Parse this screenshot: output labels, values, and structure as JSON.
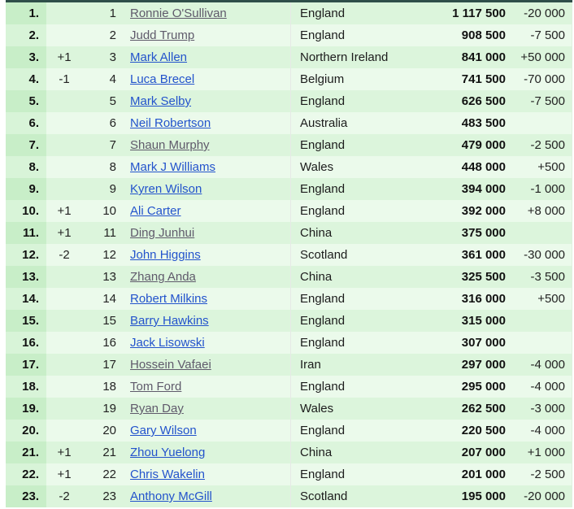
{
  "table": {
    "colors": {
      "top_border": "#2f4f4a",
      "row_odd": "#dcf5dc",
      "row_even": "#ebfaeb",
      "rank_cell_odd": "#c8eec8",
      "rank_cell_even": "#d8f4d8",
      "link": "#2353cc",
      "visited_link": "#5f5a6b"
    },
    "rows": [
      {
        "rank": "1.",
        "move": "",
        "pos": "1",
        "name": "Ronnie O'Sullivan",
        "visited": true,
        "country": "England",
        "prize": "1 117 500",
        "change": "-20 000"
      },
      {
        "rank": "2.",
        "move": "",
        "pos": "2",
        "name": "Judd Trump",
        "visited": true,
        "country": "England",
        "prize": "908 500",
        "change": "-7 500"
      },
      {
        "rank": "3.",
        "move": "+1",
        "pos": "3",
        "name": "Mark Allen",
        "visited": false,
        "country": "Northern Ireland",
        "prize": "841 000",
        "change": "+50 000"
      },
      {
        "rank": "4.",
        "move": "-1",
        "pos": "4",
        "name": "Luca Brecel",
        "visited": false,
        "country": "Belgium",
        "prize": "741 500",
        "change": "-70 000"
      },
      {
        "rank": "5.",
        "move": "",
        "pos": "5",
        "name": "Mark Selby",
        "visited": false,
        "country": "England",
        "prize": "626 500",
        "change": "-7 500"
      },
      {
        "rank": "6.",
        "move": "",
        "pos": "6",
        "name": "Neil Robertson",
        "visited": false,
        "country": "Australia",
        "prize": "483 500",
        "change": ""
      },
      {
        "rank": "7.",
        "move": "",
        "pos": "7",
        "name": "Shaun Murphy",
        "visited": true,
        "country": "England",
        "prize": "479 000",
        "change": "-2 500"
      },
      {
        "rank": "8.",
        "move": "",
        "pos": "8",
        "name": "Mark J Williams",
        "visited": false,
        "country": "Wales",
        "prize": "448 000",
        "change": "+500"
      },
      {
        "rank": "9.",
        "move": "",
        "pos": "9",
        "name": "Kyren Wilson",
        "visited": false,
        "country": "England",
        "prize": "394 000",
        "change": "-1 000"
      },
      {
        "rank": "10.",
        "move": "+1",
        "pos": "10",
        "name": "Ali Carter",
        "visited": false,
        "country": "England",
        "prize": "392 000",
        "change": "+8 000"
      },
      {
        "rank": "11.",
        "move": "+1",
        "pos": "11",
        "name": "Ding Junhui",
        "visited": true,
        "country": "China",
        "prize": "375 000",
        "change": ""
      },
      {
        "rank": "12.",
        "move": "-2",
        "pos": "12",
        "name": "John Higgins",
        "visited": false,
        "country": "Scotland",
        "prize": "361 000",
        "change": "-30 000"
      },
      {
        "rank": "13.",
        "move": "",
        "pos": "13",
        "name": "Zhang Anda",
        "visited": true,
        "country": "China",
        "prize": "325 500",
        "change": "-3 500"
      },
      {
        "rank": "14.",
        "move": "",
        "pos": "14",
        "name": "Robert Milkins",
        "visited": false,
        "country": "England",
        "prize": "316 000",
        "change": "+500"
      },
      {
        "rank": "15.",
        "move": "",
        "pos": "15",
        "name": "Barry Hawkins",
        "visited": false,
        "country": "England",
        "prize": "315 000",
        "change": ""
      },
      {
        "rank": "16.",
        "move": "",
        "pos": "16",
        "name": "Jack Lisowski",
        "visited": false,
        "country": "England",
        "prize": "307 000",
        "change": ""
      },
      {
        "rank": "17.",
        "move": "",
        "pos": "17",
        "name": "Hossein Vafaei",
        "visited": true,
        "country": "Iran",
        "prize": "297 000",
        "change": "-4 000"
      },
      {
        "rank": "18.",
        "move": "",
        "pos": "18",
        "name": "Tom Ford",
        "visited": true,
        "country": "England",
        "prize": "295 000",
        "change": "-4 000"
      },
      {
        "rank": "19.",
        "move": "",
        "pos": "19",
        "name": "Ryan Day",
        "visited": true,
        "country": "Wales",
        "prize": "262 500",
        "change": "-3 000"
      },
      {
        "rank": "20.",
        "move": "",
        "pos": "20",
        "name": "Gary Wilson",
        "visited": false,
        "country": "England",
        "prize": "220 500",
        "change": "-4 000"
      },
      {
        "rank": "21.",
        "move": "+1",
        "pos": "21",
        "name": "Zhou Yuelong",
        "visited": false,
        "country": "China",
        "prize": "207 000",
        "change": "+1 000"
      },
      {
        "rank": "22.",
        "move": "+1",
        "pos": "22",
        "name": "Chris Wakelin",
        "visited": false,
        "country": "England",
        "prize": "201 000",
        "change": "-2 500"
      },
      {
        "rank": "23.",
        "move": "-2",
        "pos": "23",
        "name": "Anthony McGill",
        "visited": false,
        "country": "Scotland",
        "prize": "195 000",
        "change": "-20 000"
      }
    ]
  }
}
